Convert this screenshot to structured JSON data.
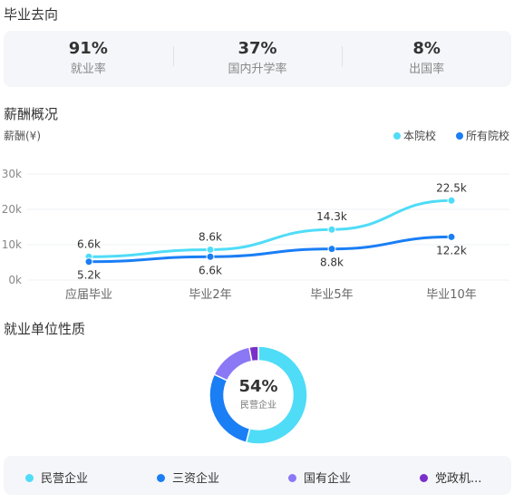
{
  "employment": {
    "title": "毕业去向",
    "stats": [
      {
        "value": "91%",
        "label": "就业率"
      },
      {
        "value": "37%",
        "label": "国内升学率"
      },
      {
        "value": "8%",
        "label": "出国率"
      }
    ]
  },
  "salary": {
    "title": "薪酬概况",
    "unit_label": "薪酬(¥)",
    "legend": [
      "本院校",
      "所有院校"
    ]
  },
  "chart_data": {
    "type": "line",
    "categories": [
      "应届毕业",
      "毕业2年",
      "毕业5年",
      "毕业10年"
    ],
    "ylim": [
      0,
      30000
    ],
    "yticks": [
      0,
      10000,
      20000,
      30000
    ],
    "ytick_labels": [
      "0k",
      "10k",
      "20k",
      "30k"
    ],
    "grid": true,
    "legend_position": "top-right",
    "series": [
      {
        "name": "本院校",
        "values": [
          6600,
          8600,
          14300,
          22500
        ],
        "labels": [
          "6.6k",
          "8.6k",
          "14.3k",
          "22.5k"
        ],
        "color": "#4fdcf7"
      },
      {
        "name": "所有院校",
        "values": [
          5200,
          6600,
          8800,
          12200
        ],
        "labels": [
          "5.2k",
          "6.6k",
          "8.8k",
          "12.2k"
        ],
        "color": "#1a7ef5"
      }
    ]
  },
  "unit_nature": {
    "title": "就业单位性质",
    "center_value": "54%",
    "center_label": "民营企业",
    "segments": [
      {
        "label": "民营企业",
        "value": 54,
        "color": "#4fdcf7"
      },
      {
        "label": "三资企业",
        "value": 28,
        "color": "#1a7ef5"
      },
      {
        "label": "国有企业",
        "value": 15,
        "color": "#8a78f5"
      },
      {
        "label": "党政机...",
        "value": 3,
        "color": "#7a2fc9"
      }
    ]
  }
}
